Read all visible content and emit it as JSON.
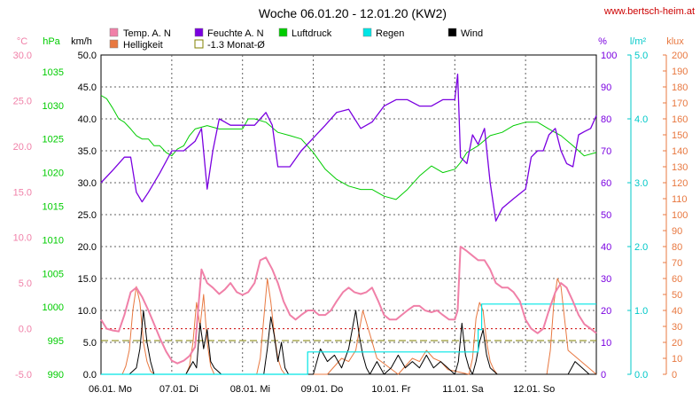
{
  "header": {
    "title": "Woche 06.01.20 - 12.01.20 (KW2)",
    "site": "www.bertsch-heim.at"
  },
  "legend": [
    {
      "label": "Temp. A. N",
      "color": "#f080a8",
      "style": "fill"
    },
    {
      "label": "Feuchte A. N",
      "color": "#7a00e0",
      "style": "fill"
    },
    {
      "label": "Luftdruck",
      "color": "#00cc00",
      "style": "fill"
    },
    {
      "label": "Regen",
      "color": "#00e5e5",
      "style": "fill"
    },
    {
      "label": "Wind",
      "color": "#000000",
      "style": "fill"
    },
    {
      "label": "Helligkeit",
      "color": "#e87840",
      "style": "fill"
    },
    {
      "label": "-1.3 Monat-Ø",
      "color": "#808000",
      "style": "outline"
    }
  ],
  "axis_units": {
    "temp": "°C",
    "pressure": "hPa",
    "wind": "km/h",
    "humidity": "%",
    "rain": "l/m²",
    "light": "klux"
  },
  "axis_colors": {
    "temp": "#f080a8",
    "pressure": "#00cc00",
    "wind": "#000000",
    "humidity": "#7a00e0",
    "rain": "#00c8c8",
    "light": "#e87840"
  },
  "ticks": {
    "temp": [
      "30.0",
      "25.0",
      "20.0",
      "15.0",
      "10.0",
      "5.0",
      "0.0",
      "-5.0"
    ],
    "pressure": [
      "1035",
      "1030",
      "1025",
      "1020",
      "1015",
      "1010",
      "1005",
      "1000",
      "995",
      "990"
    ],
    "wind": [
      "50.0",
      "45.0",
      "40.0",
      "35.0",
      "30.0",
      "25.0",
      "20.0",
      "15.0",
      "10.0",
      "5.0",
      "0.0"
    ],
    "humidity": [
      "100",
      "90",
      "80",
      "70",
      "60",
      "50",
      "40",
      "30",
      "20",
      "10",
      "0"
    ],
    "rain": [
      "5.0",
      "4.0",
      "3.0",
      "2.0",
      "1.0",
      "0.0"
    ],
    "light": [
      "200",
      "190",
      "180",
      "170",
      "160",
      "150",
      "140",
      "130",
      "120",
      "110",
      "100",
      "90",
      "80",
      "70",
      "60",
      "50",
      "40",
      "30",
      "20",
      "10",
      "0"
    ]
  },
  "days": [
    "06.01. Mo",
    "07.01. Di",
    "08.01. Mi",
    "09.01. Do",
    "10.01. Fr",
    "11.01. Sa",
    "12.01. So"
  ],
  "colors": {
    "temp": "#f080a8",
    "humidity": "#7a00e0",
    "pressure": "#00cc00",
    "rain": "#00e5e5",
    "wind": "#000000",
    "light": "#e87840",
    "avg": "#808000",
    "zero": "#cc0000",
    "grid": "#606060"
  },
  "chart_data": {
    "type": "line",
    "title": "Woche 06.01.20 - 12.01.20 (KW2)",
    "x_unit": "day_of_week",
    "xlim": [
      0,
      7
    ],
    "categories": [
      "06.01. Mo",
      "07.01. Di",
      "08.01. Mi",
      "09.01. Do",
      "10.01. Fr",
      "11.01. Sa",
      "12.01. So"
    ],
    "month_avg_temp": -1.3,
    "grid": true,
    "series": [
      {
        "name": "Temp. A. N",
        "axis": "temp",
        "unit": "°C",
        "ylim": [
          -5,
          30
        ],
        "x": [
          0,
          0.08,
          0.17,
          0.25,
          0.33,
          0.42,
          0.5,
          0.58,
          0.67,
          0.75,
          0.83,
          0.92,
          1.0,
          1.08,
          1.17,
          1.25,
          1.33,
          1.42,
          1.5,
          1.58,
          1.67,
          1.75,
          1.83,
          1.92,
          2.0,
          2.08,
          2.17,
          2.25,
          2.33,
          2.42,
          2.5,
          2.58,
          2.67,
          2.75,
          2.83,
          2.92,
          3.0,
          3.08,
          3.17,
          3.25,
          3.33,
          3.42,
          3.5,
          3.58,
          3.67,
          3.75,
          3.83,
          3.92,
          4.0,
          4.08,
          4.17,
          4.25,
          4.33,
          4.42,
          4.5,
          4.58,
          4.67,
          4.75,
          4.83,
          4.92,
          5.0,
          5.04,
          5.08,
          5.17,
          5.25,
          5.33,
          5.42,
          5.5,
          5.58,
          5.67,
          5.75,
          5.83,
          5.92,
          6.0,
          6.08,
          6.17,
          6.25,
          6.33,
          6.42,
          6.5,
          6.58,
          6.67,
          6.75,
          6.83,
          6.92,
          7.0
        ],
        "values": [
          1.0,
          0.0,
          -0.2,
          -0.3,
          1.5,
          4.0,
          4.5,
          3.5,
          2.0,
          0.5,
          -1.0,
          -2.5,
          -3.5,
          -3.8,
          -3.5,
          -3.0,
          -2.0,
          6.5,
          5.0,
          4.5,
          3.8,
          4.3,
          5.0,
          4.0,
          3.7,
          4.0,
          5.0,
          7.5,
          7.8,
          6.5,
          5.0,
          3.0,
          1.5,
          1.0,
          1.5,
          2.0,
          2.0,
          1.5,
          1.5,
          2.0,
          3.0,
          4.0,
          4.5,
          4.0,
          3.8,
          4.0,
          4.5,
          3.0,
          1.5,
          1.0,
          1.0,
          1.5,
          2.0,
          2.5,
          2.5,
          2.0,
          1.8,
          2.0,
          1.5,
          1.0,
          1.0,
          2.0,
          9.0,
          8.5,
          8.0,
          7.5,
          7.5,
          6.5,
          5.0,
          4.5,
          4.5,
          4.0,
          3.0,
          1.0,
          0.0,
          -0.5,
          0.0,
          2.0,
          4.0,
          5.0,
          4.5,
          3.0,
          1.5,
          0.5,
          0.0,
          -0.5
        ]
      },
      {
        "name": "Feuchte A. N",
        "axis": "humidity",
        "unit": "%",
        "ylim": [
          0,
          100
        ],
        "x": [
          0,
          0.17,
          0.33,
          0.42,
          0.5,
          0.58,
          0.67,
          0.83,
          1.0,
          1.17,
          1.33,
          1.42,
          1.5,
          1.58,
          1.67,
          1.83,
          2.0,
          2.17,
          2.33,
          2.42,
          2.5,
          2.67,
          2.83,
          3.0,
          3.17,
          3.33,
          3.5,
          3.67,
          3.83,
          4.0,
          4.17,
          4.33,
          4.5,
          4.67,
          4.83,
          5.0,
          5.04,
          5.08,
          5.17,
          5.25,
          5.33,
          5.42,
          5.5,
          5.58,
          5.67,
          5.83,
          6.0,
          6.08,
          6.17,
          6.25,
          6.33,
          6.42,
          6.5,
          6.58,
          6.67,
          6.75,
          6.83,
          6.92,
          7.0
        ],
        "values": [
          60,
          64,
          68,
          68,
          57,
          54,
          57,
          63,
          70,
          70,
          73,
          77,
          58,
          70,
          80,
          78,
          78,
          78,
          82,
          78,
          65,
          65,
          70,
          74,
          78,
          82,
          83,
          77,
          79,
          84,
          86,
          86,
          84,
          84,
          86,
          86,
          94,
          68,
          66,
          75,
          72,
          77,
          60,
          48,
          52,
          55,
          58,
          68,
          70,
          70,
          75,
          77,
          70,
          66,
          65,
          75,
          76,
          77,
          81
        ]
      },
      {
        "name": "Luftdruck",
        "axis": "pressure",
        "unit": "hPa",
        "ylim": [
          990,
          1037.5
        ],
        "x": [
          0,
          0.08,
          0.17,
          0.25,
          0.33,
          0.42,
          0.5,
          0.58,
          0.67,
          0.75,
          0.83,
          0.92,
          1.0,
          1.08,
          1.17,
          1.25,
          1.33,
          1.5,
          1.67,
          1.83,
          2.0,
          2.08,
          2.17,
          2.33,
          2.5,
          2.67,
          2.83,
          3.0,
          3.17,
          3.33,
          3.5,
          3.67,
          3.83,
          4.0,
          4.17,
          4.33,
          4.5,
          4.67,
          4.83,
          5.0,
          5.08,
          5.17,
          5.33,
          5.5,
          5.67,
          5.83,
          6.0,
          6.17,
          6.33,
          6.5,
          6.67,
          6.83,
          7.0
        ],
        "values": [
          1031.5,
          1031,
          1029.5,
          1028,
          1027.5,
          1026.5,
          1025.5,
          1025,
          1025,
          1024,
          1024,
          1023,
          1022.5,
          1023.5,
          1024,
          1025.5,
          1026.5,
          1027,
          1026.5,
          1026.5,
          1026.5,
          1028,
          1028,
          1027.5,
          1026,
          1025.5,
          1025,
          1023,
          1020.5,
          1019,
          1018,
          1017.5,
          1017.5,
          1016.5,
          1016,
          1017.5,
          1019.5,
          1021,
          1020,
          1020.5,
          1021.5,
          1023,
          1024,
          1025.5,
          1026,
          1027,
          1027.5,
          1027.5,
          1026.5,
          1025.5,
          1024,
          1022.5,
          1023
        ]
      },
      {
        "name": "Regen",
        "axis": "rain",
        "unit": "l/m²",
        "ylim": [
          0,
          5
        ],
        "x": [
          0,
          2.92,
          2.92,
          5.33,
          5.33,
          5.38,
          5.38,
          7.0
        ],
        "values": [
          0,
          0,
          0.35,
          0.35,
          0.7,
          0.7,
          1.1,
          1.1
        ]
      },
      {
        "name": "Wind",
        "axis": "wind",
        "unit": "km/h",
        "ylim": [
          0,
          50
        ],
        "x": [
          0,
          0.1,
          0.2,
          0.3,
          0.4,
          0.5,
          0.55,
          0.6,
          0.65,
          0.7,
          0.75,
          0.8,
          0.85,
          0.9,
          1.0,
          1.1,
          1.2,
          1.3,
          1.35,
          1.4,
          1.45,
          1.5,
          1.55,
          1.6,
          1.7,
          1.8,
          1.9,
          2.0,
          2.1,
          2.2,
          2.3,
          2.35,
          2.4,
          2.45,
          2.5,
          2.55,
          2.6,
          2.65,
          2.7,
          2.8,
          2.9,
          3.0,
          3.05,
          3.1,
          3.2,
          3.3,
          3.4,
          3.5,
          3.55,
          3.6,
          3.65,
          3.7,
          3.75,
          3.8,
          3.9,
          4.0,
          4.1,
          4.2,
          4.3,
          4.4,
          4.5,
          4.6,
          4.7,
          4.8,
          4.9,
          5.0,
          5.05,
          5.1,
          5.15,
          5.2,
          5.25,
          5.3,
          5.35,
          5.4,
          5.45,
          5.5,
          5.6,
          5.7,
          5.8,
          5.9,
          6.0,
          6.1,
          6.2,
          6.3,
          6.4,
          6.5,
          6.6,
          6.7,
          6.8,
          6.9,
          7.0
        ],
        "values": [
          0,
          0,
          0,
          0,
          0,
          1,
          4,
          10,
          5,
          2,
          0,
          0,
          0,
          0,
          0,
          0,
          0,
          2,
          1,
          8,
          4,
          7,
          2,
          1,
          0,
          0,
          0,
          0,
          0,
          0,
          0,
          4,
          9,
          6,
          2,
          5,
          1,
          0,
          0,
          0,
          0,
          0,
          2,
          4,
          2,
          3,
          1,
          4,
          7,
          10,
          6,
          3,
          1,
          0,
          2,
          0,
          1,
          3,
          1,
          2,
          1,
          3,
          1,
          2,
          1,
          0,
          2,
          8,
          3,
          1,
          0,
          2,
          5,
          7,
          3,
          1,
          0,
          0,
          0,
          0,
          0,
          0,
          0,
          0,
          0,
          0,
          0,
          2,
          1,
          0,
          0
        ]
      },
      {
        "name": "Helligkeit",
        "axis": "light",
        "unit": "klux",
        "ylim": [
          0,
          200
        ],
        "x": [
          0,
          0.3,
          0.35,
          0.4,
          0.45,
          0.5,
          0.55,
          0.6,
          0.65,
          0.7,
          0.75,
          1.2,
          1.25,
          1.3,
          1.35,
          1.4,
          1.45,
          1.5,
          1.55,
          1.6,
          2.2,
          2.25,
          2.3,
          2.35,
          2.4,
          2.45,
          2.5,
          2.55,
          2.6,
          3.2,
          3.3,
          3.4,
          3.5,
          3.6,
          3.7,
          3.8,
          3.9,
          4.2,
          4.3,
          4.4,
          4.5,
          4.6,
          4.7,
          4.8,
          4.9,
          5.2,
          5.25,
          5.3,
          5.35,
          5.4,
          5.45,
          5.5,
          5.55,
          5.6,
          6.3,
          6.35,
          6.4,
          6.45,
          6.5,
          6.55,
          6.6,
          7.0
        ],
        "values": [
          0,
          0,
          5,
          15,
          40,
          55,
          45,
          20,
          8,
          2,
          0,
          0,
          5,
          20,
          45,
          30,
          50,
          20,
          5,
          0,
          0,
          10,
          35,
          60,
          45,
          25,
          10,
          3,
          0,
          0,
          5,
          10,
          8,
          15,
          40,
          25,
          10,
          0,
          5,
          10,
          8,
          15,
          10,
          8,
          3,
          0,
          10,
          35,
          45,
          40,
          20,
          8,
          3,
          0,
          0,
          15,
          45,
          60,
          55,
          35,
          15,
          0
        ]
      }
    ]
  }
}
